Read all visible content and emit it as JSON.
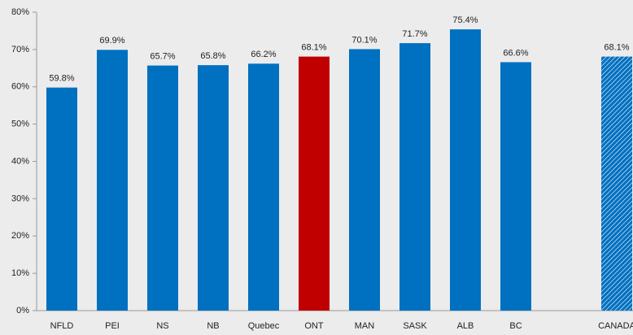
{
  "chart_data": {
    "type": "bar",
    "categories": [
      "NFLD",
      "PEI",
      "NS",
      "NB",
      "Quebec",
      "ONT",
      "MAN",
      "SASK",
      "ALB",
      "BC",
      null,
      "CANADA"
    ],
    "values": [
      59.8,
      69.9,
      65.7,
      65.8,
      66.2,
      68.1,
      70.1,
      71.7,
      75.4,
      66.6,
      null,
      68.1
    ],
    "value_labels": [
      "59.8%",
      "69.9%",
      "65.7%",
      "65.8%",
      "66.2%",
      "68.1%",
      "70.1%",
      "71.7%",
      "75.4%",
      "66.6%",
      null,
      "68.1%"
    ],
    "colors": [
      "#0070c0",
      "#0070c0",
      "#0070c0",
      "#0070c0",
      "#0070c0",
      "#c00000",
      "#0070c0",
      "#0070c0",
      "#0070c0",
      "#0070c0",
      null,
      "#0070c0"
    ],
    "hatch": [
      false,
      false,
      false,
      false,
      false,
      false,
      false,
      false,
      false,
      false,
      false,
      true
    ],
    "ylim": [
      0,
      80
    ],
    "yticks": [
      {
        "value": 0,
        "label": "0%"
      },
      {
        "value": 10,
        "label": "10%"
      },
      {
        "value": 20,
        "label": "20%"
      },
      {
        "value": 30,
        "label": "30%"
      },
      {
        "value": 40,
        "label": "40%"
      },
      {
        "value": 50,
        "label": "50%"
      },
      {
        "value": 60,
        "label": "60%"
      },
      {
        "value": 70,
        "label": "70%"
      },
      {
        "value": 80,
        "label": "80%"
      }
    ],
    "grid": false
  }
}
